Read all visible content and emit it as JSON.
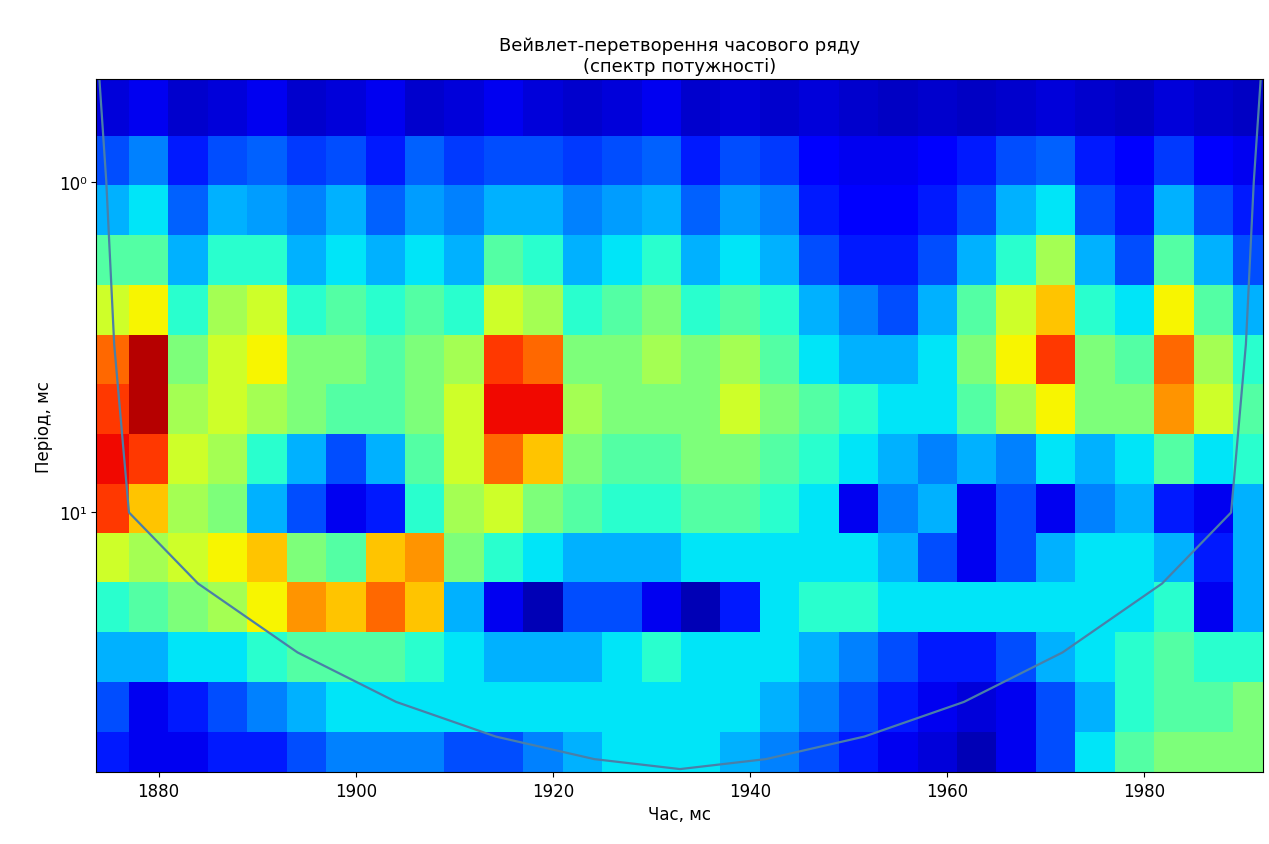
{
  "chart_data": {
    "type": "heatmap",
    "title": "Вейвлет-перетворення часового ряду\n(спектр потужності)",
    "x_label": "Час, мс",
    "y_label": "Період, мс",
    "log": "y",
    "xlim": [
      1873.7,
      1992
    ],
    "ylim": [
      61,
      0.49
    ],
    "xticks": [
      1880,
      1900,
      1920,
      1940,
      1960,
      1980
    ],
    "yticks": [
      {
        "value": 1,
        "label": "10⁰"
      },
      {
        "value": 10,
        "label": "10¹"
      }
    ],
    "x": [
      1875,
      1879,
      1883,
      1887,
      1891,
      1895,
      1899,
      1903,
      1907,
      1911,
      1915,
      1919,
      1923,
      1927,
      1931,
      1935,
      1939,
      1943,
      1947,
      1951,
      1955,
      1959,
      1963,
      1967,
      1971,
      1975,
      1979,
      1983,
      1987,
      1991
    ],
    "periods": [
      0.6,
      0.85,
      1.2,
      1.7,
      2.4,
      3.4,
      4.8,
      6.8,
      9.6,
      13.5,
      19,
      27,
      38,
      54
    ],
    "cell_range": [
      0,
      1
    ],
    "cells": [
      [
        0.08,
        0.1,
        0.07,
        0.08,
        0.1,
        0.07,
        0.08,
        0.1,
        0.07,
        0.08,
        0.1,
        0.08,
        0.07,
        0.08,
        0.1,
        0.07,
        0.08,
        0.07,
        0.08,
        0.07,
        0.06,
        0.07,
        0.06,
        0.07,
        0.08,
        0.07,
        0.06,
        0.08,
        0.07,
        0.06
      ],
      [
        0.2,
        0.25,
        0.15,
        0.2,
        0.22,
        0.18,
        0.2,
        0.15,
        0.22,
        0.18,
        0.2,
        0.2,
        0.18,
        0.2,
        0.22,
        0.15,
        0.2,
        0.18,
        0.12,
        0.1,
        0.1,
        0.12,
        0.15,
        0.2,
        0.22,
        0.15,
        0.12,
        0.18,
        0.12,
        0.1
      ],
      [
        0.3,
        0.35,
        0.22,
        0.3,
        0.28,
        0.25,
        0.3,
        0.22,
        0.28,
        0.25,
        0.3,
        0.3,
        0.25,
        0.28,
        0.3,
        0.22,
        0.28,
        0.25,
        0.15,
        0.12,
        0.12,
        0.15,
        0.2,
        0.3,
        0.35,
        0.2,
        0.15,
        0.3,
        0.2,
        0.15
      ],
      [
        0.45,
        0.45,
        0.3,
        0.4,
        0.4,
        0.3,
        0.35,
        0.3,
        0.35,
        0.3,
        0.45,
        0.4,
        0.3,
        0.35,
        0.4,
        0.3,
        0.35,
        0.3,
        0.2,
        0.15,
        0.15,
        0.2,
        0.3,
        0.4,
        0.55,
        0.3,
        0.2,
        0.45,
        0.3,
        0.2
      ],
      [
        0.6,
        0.65,
        0.4,
        0.55,
        0.6,
        0.4,
        0.45,
        0.4,
        0.45,
        0.4,
        0.6,
        0.55,
        0.4,
        0.45,
        0.5,
        0.4,
        0.45,
        0.4,
        0.3,
        0.25,
        0.2,
        0.3,
        0.45,
        0.6,
        0.7,
        0.4,
        0.35,
        0.65,
        0.45,
        0.3
      ],
      [
        0.8,
        0.95,
        0.5,
        0.6,
        0.65,
        0.5,
        0.5,
        0.45,
        0.5,
        0.55,
        0.85,
        0.8,
        0.5,
        0.5,
        0.55,
        0.5,
        0.55,
        0.45,
        0.35,
        0.3,
        0.3,
        0.35,
        0.5,
        0.65,
        0.85,
        0.5,
        0.45,
        0.8,
        0.55,
        0.4
      ],
      [
        0.85,
        0.95,
        0.55,
        0.6,
        0.55,
        0.5,
        0.45,
        0.45,
        0.5,
        0.6,
        0.9,
        0.9,
        0.55,
        0.5,
        0.5,
        0.5,
        0.6,
        0.5,
        0.45,
        0.4,
        0.35,
        0.35,
        0.45,
        0.55,
        0.65,
        0.5,
        0.5,
        0.75,
        0.6,
        0.45
      ],
      [
        0.9,
        0.85,
        0.6,
        0.55,
        0.4,
        0.3,
        0.2,
        0.3,
        0.45,
        0.6,
        0.8,
        0.7,
        0.5,
        0.45,
        0.45,
        0.5,
        0.5,
        0.45,
        0.4,
        0.35,
        0.3,
        0.25,
        0.3,
        0.25,
        0.35,
        0.3,
        0.35,
        0.45,
        0.35,
        0.4
      ],
      [
        0.85,
        0.7,
        0.55,
        0.5,
        0.3,
        0.2,
        0.1,
        0.15,
        0.4,
        0.55,
        0.6,
        0.5,
        0.45,
        0.4,
        0.4,
        0.45,
        0.45,
        0.4,
        0.35,
        0.1,
        0.25,
        0.3,
        0.1,
        0.2,
        0.1,
        0.25,
        0.3,
        0.15,
        0.1,
        0.3
      ],
      [
        0.6,
        0.55,
        0.6,
        0.65,
        0.7,
        0.5,
        0.45,
        0.7,
        0.75,
        0.5,
        0.4,
        0.35,
        0.3,
        0.3,
        0.3,
        0.35,
        0.35,
        0.35,
        0.35,
        0.35,
        0.3,
        0.2,
        0.1,
        0.2,
        0.3,
        0.35,
        0.35,
        0.3,
        0.15,
        0.3
      ],
      [
        0.4,
        0.45,
        0.5,
        0.55,
        0.65,
        0.75,
        0.7,
        0.8,
        0.7,
        0.3,
        0.1,
        0.05,
        0.2,
        0.2,
        0.1,
        0.05,
        0.15,
        0.35,
        0.4,
        0.4,
        0.35,
        0.35,
        0.35,
        0.35,
        0.35,
        0.35,
        0.35,
        0.4,
        0.1,
        0.3
      ],
      [
        0.3,
        0.3,
        0.35,
        0.35,
        0.4,
        0.45,
        0.45,
        0.45,
        0.4,
        0.35,
        0.3,
        0.3,
        0.3,
        0.35,
        0.4,
        0.35,
        0.35,
        0.35,
        0.3,
        0.25,
        0.2,
        0.15,
        0.15,
        0.2,
        0.3,
        0.35,
        0.4,
        0.45,
        0.4,
        0.4
      ],
      [
        0.2,
        0.1,
        0.15,
        0.2,
        0.25,
        0.3,
        0.35,
        0.35,
        0.35,
        0.35,
        0.35,
        0.35,
        0.35,
        0.35,
        0.35,
        0.35,
        0.35,
        0.3,
        0.25,
        0.2,
        0.15,
        0.1,
        0.08,
        0.1,
        0.2,
        0.3,
        0.4,
        0.45,
        0.45,
        0.5
      ],
      [
        0.15,
        0.1,
        0.1,
        0.15,
        0.15,
        0.2,
        0.25,
        0.25,
        0.25,
        0.2,
        0.2,
        0.25,
        0.3,
        0.35,
        0.35,
        0.35,
        0.3,
        0.25,
        0.2,
        0.15,
        0.1,
        0.08,
        0.05,
        0.1,
        0.2,
        0.35,
        0.45,
        0.5,
        0.5,
        0.5
      ]
    ],
    "coi": {
      "x": [
        1874.0,
        1874.7,
        1875.5,
        1877.0,
        1884.0,
        1894.1,
        1904.1,
        1914.2,
        1924.2,
        1932.9,
        1941.6,
        1951.6,
        1961.7,
        1971.7,
        1981.8,
        1988.8,
        1990.3,
        1991.1,
        1991.8
      ],
      "periods": [
        0.49,
        1,
        3.1,
        10,
        16.4,
        26.5,
        37.4,
        47.6,
        55.7,
        59.7,
        55.7,
        47.6,
        37.4,
        26.5,
        16.4,
        10,
        3.1,
        1,
        0.49
      ],
      "color": "#4a7fa8"
    }
  }
}
